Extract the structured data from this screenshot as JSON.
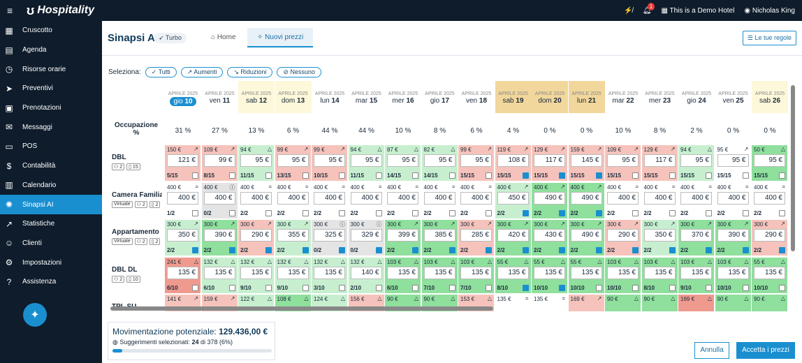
{
  "app": {
    "name": "Hospitality",
    "hotel": "This is a Demo Hotel",
    "user": "Nicholas King",
    "notifications": "1"
  },
  "nav": [
    {
      "label": "Cruscotto",
      "icon": "dashboard-icon",
      "glyph": "▦"
    },
    {
      "label": "Agenda",
      "icon": "calendar-icon",
      "glyph": "▤"
    },
    {
      "label": "Risorse orarie",
      "icon": "clock-icon",
      "glyph": "◷"
    },
    {
      "label": "Preventivi",
      "icon": "send-icon",
      "glyph": "➤"
    },
    {
      "label": "Prenotazioni",
      "icon": "booking-icon",
      "glyph": "▣"
    },
    {
      "label": "Messaggi",
      "icon": "messages-icon",
      "glyph": "✉"
    },
    {
      "label": "POS",
      "icon": "pos-icon",
      "glyph": "▭"
    },
    {
      "label": "Contabilità",
      "icon": "accounting-icon",
      "glyph": "$"
    },
    {
      "label": "Calendario",
      "icon": "calendar-grid-icon",
      "glyph": "▥"
    },
    {
      "label": "Sinapsi AI",
      "icon": "ai-icon",
      "glyph": "✺",
      "active": true
    },
    {
      "label": "Statistiche",
      "icon": "stats-icon",
      "glyph": "↗"
    },
    {
      "label": "Clienti",
      "icon": "clients-icon",
      "glyph": "☺"
    },
    {
      "label": "Impostazioni",
      "icon": "settings-icon",
      "glyph": "⚙"
    },
    {
      "label": "Assistenza",
      "icon": "help-icon",
      "glyph": "?"
    }
  ],
  "page": {
    "title": "Sinapsi AI",
    "badge": "Turbo",
    "tabs": [
      "Home",
      "Nuovi prezzi"
    ],
    "rules_button": "Le tue regole"
  },
  "filters": {
    "label": "Seleziona:",
    "options": [
      "Tutti",
      "Aumenti",
      "Riduzioni",
      "Nessuno"
    ]
  },
  "occupancy_label": "Occupazione %",
  "days": [
    {
      "m": "APRILE 2025",
      "dow": "gio",
      "n": "10",
      "occ": "31 %",
      "bg": "today"
    },
    {
      "m": "APRILE 2025",
      "dow": "ven",
      "n": "11",
      "occ": "27 %",
      "bg": ""
    },
    {
      "m": "APRILE 2025",
      "dow": "sab",
      "n": "12",
      "occ": "13 %",
      "bg": "#fdf8d9"
    },
    {
      "m": "APRILE 2025",
      "dow": "dom",
      "n": "13",
      "occ": "6 %",
      "bg": "#fdf8d9"
    },
    {
      "m": "APRILE 2025",
      "dow": "lun",
      "n": "14",
      "occ": "44 %",
      "bg": ""
    },
    {
      "m": "APRILE 2025",
      "dow": "mar",
      "n": "15",
      "occ": "44 %",
      "bg": ""
    },
    {
      "m": "APRILE 2025",
      "dow": "mer",
      "n": "16",
      "occ": "10 %",
      "bg": ""
    },
    {
      "m": "APRILE 2025",
      "dow": "gio",
      "n": "17",
      "occ": "8 %",
      "bg": ""
    },
    {
      "m": "APRILE 2025",
      "dow": "ven",
      "n": "18",
      "occ": "6 %",
      "bg": ""
    },
    {
      "m": "APRILE 2025",
      "dow": "sab",
      "n": "19",
      "occ": "4 %",
      "bg": "#f2d79c"
    },
    {
      "m": "APRILE 2025",
      "dow": "dom",
      "n": "20",
      "occ": "0 %",
      "bg": "#f2d79c"
    },
    {
      "m": "APRILE 2025",
      "dow": "lun",
      "n": "21",
      "occ": "0 %",
      "bg": "#f2d79c"
    },
    {
      "m": "APRILE 2025",
      "dow": "mar",
      "n": "22",
      "occ": "10 %",
      "bg": ""
    },
    {
      "m": "APRILE 2025",
      "dow": "mer",
      "n": "23",
      "occ": "8 %",
      "bg": ""
    },
    {
      "m": "APRILE 2025",
      "dow": "gio",
      "n": "24",
      "occ": "2 %",
      "bg": ""
    },
    {
      "m": "APRILE 2025",
      "dow": "ven",
      "n": "25",
      "occ": "0 %",
      "bg": ""
    },
    {
      "m": "APRILE 2025",
      "dow": "sab",
      "n": "26",
      "occ": "0 %",
      "bg": "#fdf8d9"
    }
  ],
  "rooms": [
    {
      "name": "DBL",
      "tags": [
        "⚇ 2",
        "▯ 15"
      ],
      "cells": [
        [
          "150 €",
          "↗",
          "121 €",
          "5/15",
          0,
          "r"
        ],
        [
          "109 €",
          "↗",
          "99 €",
          "8/15",
          0,
          "r"
        ],
        [
          "94 €",
          "△",
          "95 €",
          "11/15",
          0,
          "g"
        ],
        [
          "99 €",
          "↗",
          "95 €",
          "13/15",
          0,
          "r"
        ],
        [
          "99 €",
          "↗",
          "95 €",
          "10/15",
          0,
          "r"
        ],
        [
          "94 €",
          "△",
          "95 €",
          "11/15",
          0,
          "g"
        ],
        [
          "87 €",
          "△",
          "95 €",
          "14/15",
          0,
          "g"
        ],
        [
          "82 €",
          "△",
          "95 €",
          "14/15",
          0,
          "g"
        ],
        [
          "99 €",
          "↗",
          "95 €",
          "15/15",
          0,
          "r"
        ],
        [
          "119 €",
          "↗",
          "108 €",
          "15/15",
          1,
          "r"
        ],
        [
          "129 €",
          "↗",
          "117 €",
          "15/15",
          1,
          "r"
        ],
        [
          "159 €",
          "↗",
          "145 €",
          "15/15",
          1,
          "r"
        ],
        [
          "109 €",
          "↗",
          "95 €",
          "15/15",
          0,
          "r"
        ],
        [
          "129 €",
          "↗",
          "117 €",
          "15/15",
          0,
          "r"
        ],
        [
          "94 €",
          "△",
          "95 €",
          "15/15",
          0,
          "g"
        ],
        [
          "95 €",
          "↗",
          "95 €",
          "15/15",
          0,
          "w"
        ],
        [
          "50 €",
          "△",
          "95 €",
          "15/15",
          0,
          "G"
        ]
      ]
    },
    {
      "name": "Camera Familiare",
      "tags": [
        "Virtuale",
        "⚇ 2",
        "▯ 2"
      ],
      "cells": [
        [
          "400 €",
          "=",
          "400 €",
          "1/2",
          0,
          "w"
        ],
        [
          "400 €",
          "ⓘ",
          "400 €",
          "0/2",
          0,
          "x"
        ],
        [
          "400 €",
          "=",
          "400 €",
          "2/2",
          0,
          "w"
        ],
        [
          "400 €",
          "=",
          "400 €",
          "2/2",
          0,
          "w"
        ],
        [
          "400 €",
          "=",
          "400 €",
          "2/2",
          0,
          "w"
        ],
        [
          "400 €",
          "=",
          "400 €",
          "2/2",
          0,
          "w"
        ],
        [
          "400 €",
          "=",
          "400 €",
          "2/2",
          0,
          "w"
        ],
        [
          "400 €",
          "=",
          "400 €",
          "2/2",
          0,
          "w"
        ],
        [
          "400 €",
          "=",
          "400 €",
          "2/2",
          0,
          "w"
        ],
        [
          "400 €",
          "↗",
          "450 €",
          "2/2",
          1,
          "g"
        ],
        [
          "400 €",
          "↗",
          "490 €",
          "2/2",
          1,
          "G"
        ],
        [
          "400 €",
          "↗",
          "490 €",
          "2/2",
          1,
          "G"
        ],
        [
          "400 €",
          "=",
          "400 €",
          "2/2",
          0,
          "w"
        ],
        [
          "400 €",
          "=",
          "400 €",
          "2/2",
          0,
          "w"
        ],
        [
          "400 €",
          "=",
          "400 €",
          "2/2",
          0,
          "w"
        ],
        [
          "400 €",
          "=",
          "400 €",
          "2/2",
          0,
          "w"
        ],
        [
          "400 €",
          "=",
          "400 €",
          "2/2",
          0,
          "w"
        ]
      ]
    },
    {
      "name": "Appartamento",
      "tags": [
        "Virtuale",
        "⚇ 2",
        "▯ 2"
      ],
      "cells": [
        [
          "300 €",
          "↗",
          "350 €",
          "2/2",
          1,
          "g"
        ],
        [
          "300 €",
          "↗",
          "390 €",
          "2/2",
          1,
          "G"
        ],
        [
          "300 €",
          "↗",
          "290 €",
          "2/2",
          1,
          "r"
        ],
        [
          "300 €",
          "↗",
          "355 €",
          "2/2",
          1,
          "g"
        ],
        [
          "300 €",
          "ⓘ",
          "325 €",
          "0/2",
          1,
          "x"
        ],
        [
          "300 €",
          "ⓘ",
          "329 €",
          "0/2",
          1,
          "x"
        ],
        [
          "300 €",
          "↗",
          "399 €",
          "2/2",
          1,
          "G"
        ],
        [
          "300 €",
          "↗",
          "385 €",
          "2/2",
          1,
          "G"
        ],
        [
          "300 €",
          "↗",
          "285 €",
          "2/2",
          1,
          "r"
        ],
        [
          "300 €",
          "↗",
          "420 €",
          "2/2",
          1,
          "G"
        ],
        [
          "300 €",
          "↗",
          "430 €",
          "2/2",
          1,
          "G"
        ],
        [
          "300 €",
          "↗",
          "490 €",
          "2/2",
          1,
          "G"
        ],
        [
          "300 €",
          "↗",
          "290 €",
          "2/2",
          1,
          "r"
        ],
        [
          "300 €",
          "↗",
          "350 €",
          "2/2",
          1,
          "g"
        ],
        [
          "300 €",
          "↗",
          "370 €",
          "2/2",
          1,
          "G"
        ],
        [
          "300 €",
          "↗",
          "390 €",
          "2/2",
          1,
          "G"
        ],
        [
          "300 €",
          "↗",
          "290 €",
          "2/2",
          1,
          "r"
        ]
      ]
    },
    {
      "name": "DBL DL",
      "tags": [
        "⚇ 2",
        "▯ 10"
      ],
      "cells": [
        [
          "241 €",
          "△",
          "135 €",
          "6/10",
          0,
          "R"
        ],
        [
          "132 €",
          "△",
          "135 €",
          "6/10",
          0,
          "g"
        ],
        [
          "132 €",
          "△",
          "135 €",
          "9/10",
          0,
          "g"
        ],
        [
          "132 €",
          "△",
          "135 €",
          "9/10",
          0,
          "g"
        ],
        [
          "132 €",
          "△",
          "135 €",
          "3/10",
          0,
          "g"
        ],
        [
          "132 €",
          "△",
          "140 €",
          "2/10",
          0,
          "g"
        ],
        [
          "103 €",
          "△",
          "135 €",
          "6/10",
          0,
          "G"
        ],
        [
          "103 €",
          "△",
          "135 €",
          "7/10",
          0,
          "G"
        ],
        [
          "103 €",
          "△",
          "135 €",
          "7/10",
          0,
          "G"
        ],
        [
          "55 €",
          "△",
          "135 €",
          "8/10",
          1,
          "G"
        ],
        [
          "55 €",
          "△",
          "135 €",
          "10/10",
          1,
          "G"
        ],
        [
          "55 €",
          "△",
          "135 €",
          "10/10",
          0,
          "G"
        ],
        [
          "103 €",
          "△",
          "135 €",
          "10/10",
          0,
          "G"
        ],
        [
          "103 €",
          "△",
          "135 €",
          "8/10",
          0,
          "G"
        ],
        [
          "103 €",
          "△",
          "135 €",
          "9/10",
          0,
          "G"
        ],
        [
          "103 €",
          "△",
          "135 €",
          "10/10",
          0,
          "G"
        ],
        [
          "55 €",
          "△",
          "135 €",
          "10/10",
          0,
          "G"
        ]
      ]
    },
    {
      "name": "TPL SU",
      "tags": [],
      "cells": [
        [
          "141 €",
          "↗",
          "",
          "",
          0,
          "r"
        ],
        [
          "159 €",
          "↗",
          "",
          "",
          0,
          "r"
        ],
        [
          "122 €",
          "△",
          "",
          "",
          0,
          "g"
        ],
        [
          "108 €",
          "△",
          "",
          "",
          0,
          "G"
        ],
        [
          "124 €",
          "△",
          "",
          "",
          0,
          "g"
        ],
        [
          "156 €",
          "△",
          "",
          "",
          0,
          "r"
        ],
        [
          "90 €",
          "△",
          "",
          "",
          0,
          "G"
        ],
        [
          "90 €",
          "△",
          "",
          "",
          0,
          "G"
        ],
        [
          "153 €",
          "△",
          "",
          "",
          0,
          "r"
        ],
        [
          "135 €",
          "=",
          "",
          "",
          0,
          "w"
        ],
        [
          "135 €",
          "=",
          "",
          "",
          0,
          "w"
        ],
        [
          "169 €",
          "↗",
          "",
          "",
          0,
          "r"
        ],
        [
          "90 €",
          "△",
          "",
          "",
          0,
          "G"
        ],
        [
          "90 €",
          "△",
          "",
          "",
          0,
          "G"
        ],
        [
          "169 €",
          "△",
          "",
          "",
          0,
          "R"
        ],
        [
          "90 €",
          "△",
          "",
          "",
          0,
          "G"
        ],
        [
          "90 €",
          "△",
          "",
          "",
          0,
          "G"
        ]
      ]
    }
  ],
  "footer": {
    "title": "Movimentazione potenziale:",
    "amount": "129.436,00 €",
    "selected_label": "Suggerimenti selezionati:",
    "selected": "24",
    "of": "di 378 (6%)",
    "progress": 0.06
  },
  "actions": {
    "cancel": "Annulla",
    "accept": "Accetta i prezzi"
  }
}
